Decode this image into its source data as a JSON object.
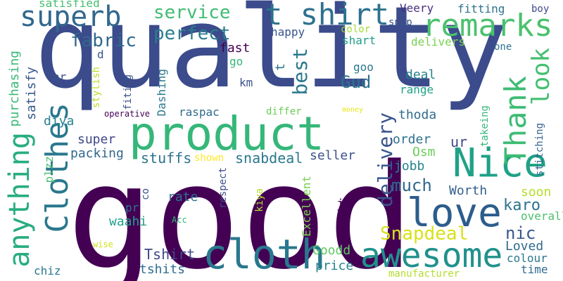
{
  "words": [
    {
      "text": "good",
      "color": "#440154"
    },
    {
      "text": "quality",
      "color": "#3b4b8b"
    },
    {
      "text": "product",
      "color": "#35b779"
    },
    {
      "text": "Nice",
      "color": "#1fa187"
    },
    {
      "text": "love",
      "color": "#2c5d8c"
    },
    {
      "text": "cloth",
      "color": "#2a788e"
    },
    {
      "text": "awesome",
      "color": "#21918c"
    },
    {
      "text": "Clothes",
      "color": "#2a788e"
    },
    {
      "text": "anything",
      "color": "#27ad81"
    },
    {
      "text": "superb",
      "color": "#31688e"
    },
    {
      "text": "remarks",
      "color": "#4ac16d"
    },
    {
      "text": "t shirt",
      "color": "#2c728e"
    },
    {
      "text": "Thank",
      "color": "#3dbc74"
    },
    {
      "text": "look",
      "color": "#44bf70"
    },
    {
      "text": "delivery",
      "color": "#39558c"
    },
    {
      "text": "perfect",
      "color": "#287d8e"
    },
    {
      "text": "service",
      "color": "#3fbc73"
    },
    {
      "text": "fabric",
      "color": "#31688e"
    },
    {
      "text": "best",
      "color": "#2a788e"
    },
    {
      "text": "Snapdeal",
      "color": "#d8e219"
    },
    {
      "text": "Gud",
      "color": "#2d708e"
    },
    {
      "text": "much",
      "color": "#31688e"
    },
    {
      "text": "karo",
      "color": "#2c728e"
    },
    {
      "text": "nic",
      "color": "#38598c"
    },
    {
      "text": "Loved",
      "color": "#2f6b8e"
    },
    {
      "text": "Tshirt",
      "color": "#3e4a89"
    },
    {
      "text": "price",
      "color": "#26828e"
    },
    {
      "text": "Goodd",
      "color": "#5ec962"
    },
    {
      "text": "cloth",
      "color": "#2a788e"
    },
    {
      "text": "stuffs",
      "color": "#2c728e"
    },
    {
      "text": "snabdeal",
      "color": "#2a788e"
    },
    {
      "text": "seller",
      "color": "#3b528b"
    },
    {
      "text": "Osm",
      "color": "#6ccd5a"
    },
    {
      "text": "jobb",
      "color": "#25848e"
    },
    {
      "text": "order",
      "color": "#2d708e"
    },
    {
      "text": "ur",
      "color": "#3e4989"
    },
    {
      "text": "thoda",
      "color": "#2f6c8e"
    },
    {
      "text": "Worth",
      "color": "#35608d"
    },
    {
      "text": "soon",
      "color": "#b5de2b"
    },
    {
      "text": "overall",
      "color": "#4ac16d"
    },
    {
      "text": "colour",
      "color": "#2a788e"
    },
    {
      "text": "time",
      "color": "#2f6b8e"
    },
    {
      "text": "rate",
      "color": "#2d708e"
    },
    {
      "text": "waahi",
      "color": "#1f9e89"
    },
    {
      "text": "tshits",
      "color": "#2e6f8e"
    },
    {
      "text": "super",
      "color": "#3f4788"
    },
    {
      "text": "packing",
      "color": "#31688e"
    },
    {
      "text": "diya",
      "color": "#26818e"
    },
    {
      "text": "satisfy",
      "color": "#38598c"
    },
    {
      "text": "purchasing",
      "color": "#38b977"
    },
    {
      "text": "satisfied",
      "color": "#44bf70"
    },
    {
      "text": "happy",
      "color": "#39558c"
    },
    {
      "text": "color",
      "color": "#a2da37"
    },
    {
      "text": "shart",
      "color": "#1f9e89"
    },
    {
      "text": "fast",
      "color": "#440154"
    },
    {
      "text": "go",
      "color": "#35b779"
    },
    {
      "text": "goo",
      "color": "#2a788e"
    },
    {
      "text": "range",
      "color": "#1fa187"
    },
    {
      "text": "deal",
      "color": "#26828e"
    },
    {
      "text": "delivers",
      "color": "#7ad151"
    },
    {
      "text": "one",
      "color": "#2c728e"
    },
    {
      "text": "Veery",
      "color": "#46307e"
    },
    {
      "text": "fitting",
      "color": "#2c728e"
    },
    {
      "text": "boy",
      "color": "#3e4989"
    },
    {
      "text": "snap",
      "color": "#3b528b"
    },
    {
      "text": "km",
      "color": "#3b528b"
    },
    {
      "text": "differ",
      "color": "#6ccd5a"
    },
    {
      "text": "raspac",
      "color": "#2f6c8e"
    },
    {
      "text": "operative",
      "color": "#440154"
    },
    {
      "text": "money",
      "color": "#e5e419"
    },
    {
      "text": "Dashing",
      "color": "#2a788e"
    },
    {
      "text": "fiting",
      "color": "#3b528b"
    },
    {
      "text": "stylish",
      "color": "#b8de29"
    },
    {
      "text": "ar",
      "color": "#3b528b"
    },
    {
      "text": "d",
      "color": "#38598c"
    },
    {
      "text": "t",
      "color": "#2c728e"
    },
    {
      "text": "plzz",
      "color": "#48c16e"
    },
    {
      "text": "shown",
      "color": "#fde725"
    },
    {
      "text": "respect",
      "color": "#3e4a89"
    },
    {
      "text": "kiya",
      "color": "#b5de2b"
    },
    {
      "text": "co",
      "color": "#3b528b"
    },
    {
      "text": "pr",
      "color": "#2c728e"
    },
    {
      "text": "Acc",
      "color": "#35b779"
    },
    {
      "text": "wise",
      "color": "#d0e11c"
    },
    {
      "text": "chiz",
      "color": "#2a788e"
    },
    {
      "text": "Excellent",
      "color": "#7ad151"
    },
    {
      "text": "jo",
      "color": "#440154"
    },
    {
      "text": "manufacturer",
      "color": "#b5de2b"
    },
    {
      "text": "takeing",
      "color": "#35b779"
    },
    {
      "text": "stitching",
      "color": "#35608d"
    }
  ]
}
